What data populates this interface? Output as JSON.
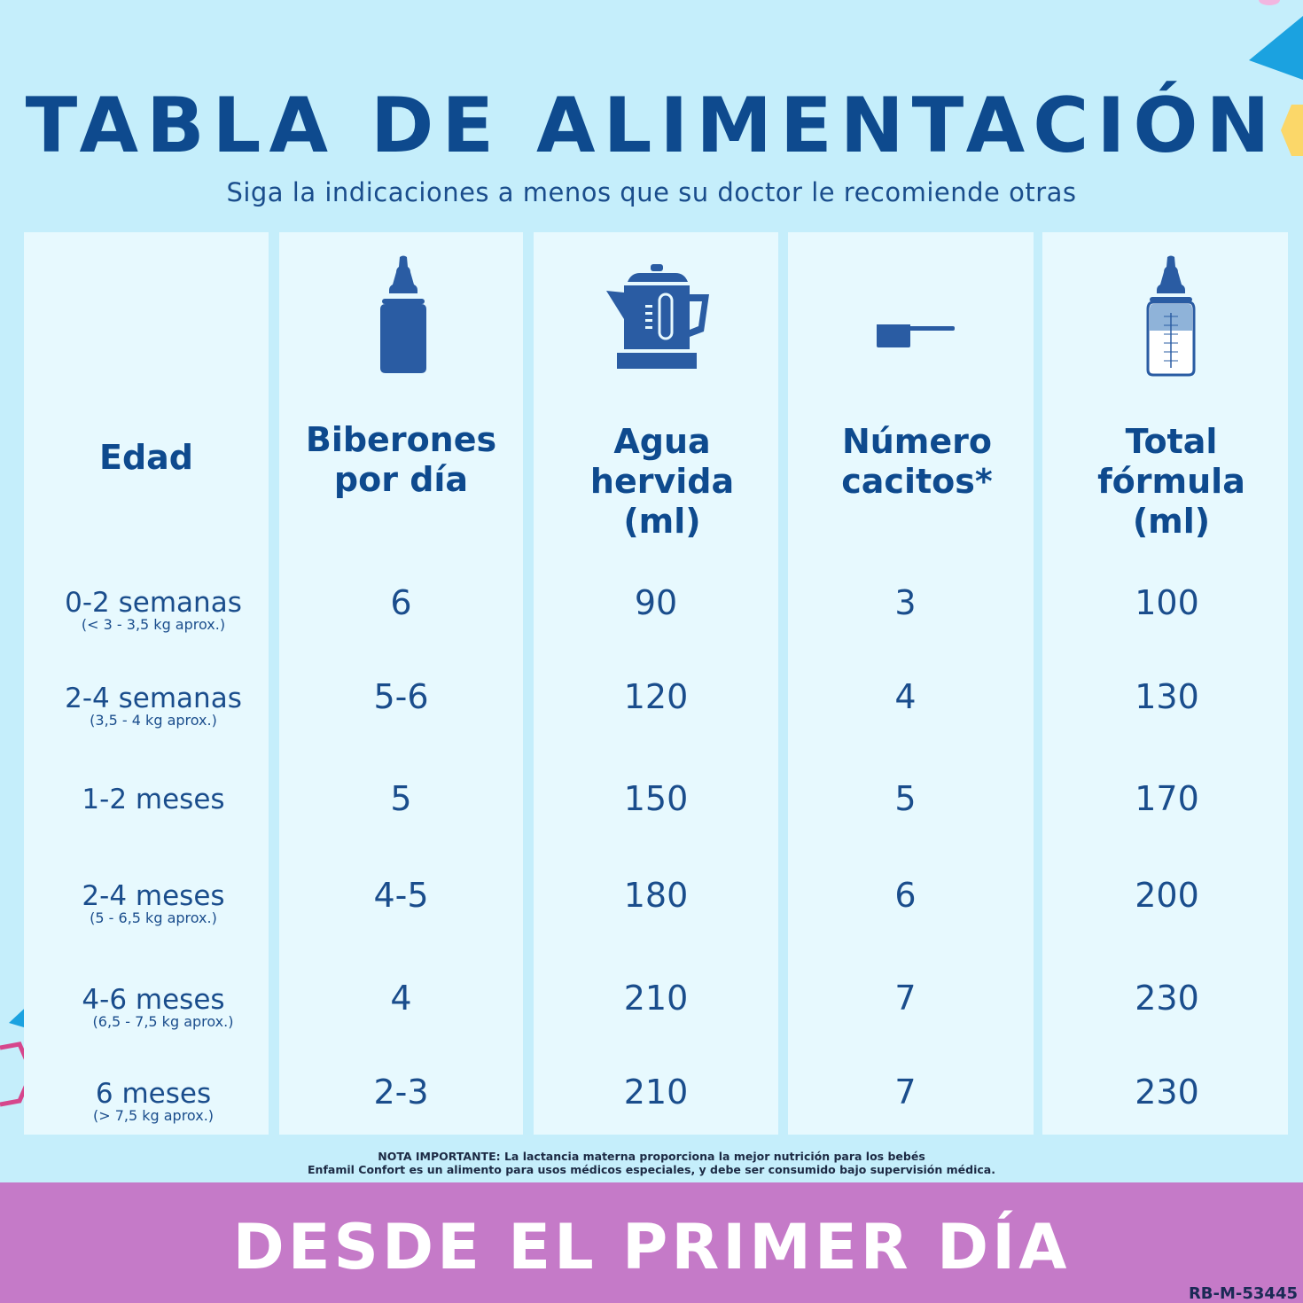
{
  "title": "TABLA DE ALIMENTACIÓN",
  "subtitle": "Siga la indicaciones a menos que su doctor le recomiende otras",
  "columns": {
    "edad": {
      "header": "Edad"
    },
    "biberones": {
      "header_line1": "Biberones",
      "header_line2": "por día",
      "icon": "baby-bottle-icon"
    },
    "agua": {
      "header_line1": "Agua",
      "header_line2": "hervida",
      "header_line3": "(ml)",
      "icon": "kettle-icon"
    },
    "cacitos": {
      "header_line1": "Número",
      "header_line2": "cacitos*",
      "icon": "scoop-icon"
    },
    "total": {
      "header_line1": "Total",
      "header_line2": "fórmula",
      "header_line3": "(ml)",
      "icon": "measuring-bottle-icon"
    }
  },
  "rows": [
    {
      "age": "0-2 semanas",
      "weight": "(< 3 - 3,5 kg aprox.)",
      "biberones": "6",
      "agua": "90",
      "cacitos": "3",
      "total": "100"
    },
    {
      "age": "2-4 semanas",
      "weight": "(3,5 - 4 kg aprox.)",
      "biberones": "5-6",
      "agua": "120",
      "cacitos": "4",
      "total": "130"
    },
    {
      "age": "1-2 meses",
      "weight": "",
      "biberones": "5",
      "agua": "150",
      "cacitos": "5",
      "total": "170"
    },
    {
      "age": "2-4 meses",
      "weight": "(5 - 6,5 kg aprox.)",
      "biberones": "4-5",
      "agua": "180",
      "cacitos": "6",
      "total": "200"
    },
    {
      "age": "4-6 meses",
      "weight": "(6,5 - 7,5 kg aprox.)",
      "biberones": "4",
      "agua": "210",
      "cacitos": "7",
      "total": "230"
    },
    {
      "age": "6 meses",
      "weight": "(> 7,5 kg aprox.)",
      "biberones": "2-3",
      "agua": "210",
      "cacitos": "7",
      "total": "230"
    }
  ],
  "note": {
    "line1": "NOTA IMPORTANTE: La lactancia materna proporciona la mejor nutrición para los bebés",
    "line2": "Enfamil Confort es un alimento para usos médicos especiales, y debe ser consumido bajo supervisión médica."
  },
  "banner": "DESDE EL PRIMER DÍA",
  "code": "RB-M-53445",
  "colors": {
    "background": "#c5eefb",
    "column": "#e7f9fe",
    "title": "#0e4a8e",
    "icon": "#2a5ca3",
    "banner": "#c57ac8"
  }
}
